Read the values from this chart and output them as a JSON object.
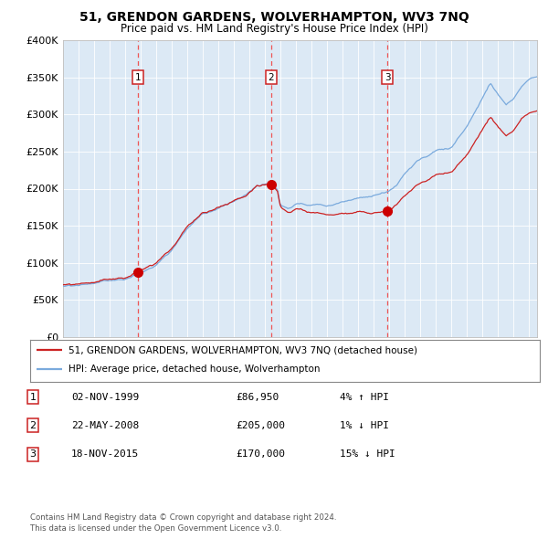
{
  "title": "51, GRENDON GARDENS, WOLVERHAMPTON, WV3 7NQ",
  "subtitle": "Price paid vs. HM Land Registry's House Price Index (HPI)",
  "background_color": "#dce9f5",
  "hpi_color": "#7aaadd",
  "price_color": "#cc2222",
  "sale_marker_color": "#cc0000",
  "dashed_line_color": "#ee5555",
  "ylim": [
    0,
    400000
  ],
  "yticks": [
    0,
    50000,
    100000,
    150000,
    200000,
    250000,
    300000,
    350000,
    400000
  ],
  "ytick_labels": [
    "£0",
    "£50K",
    "£100K",
    "£150K",
    "£200K",
    "£250K",
    "£300K",
    "£350K",
    "£400K"
  ],
  "xstart": 1995.0,
  "xend": 2025.5,
  "sales": [
    {
      "year": 1999.84,
      "price": 86950,
      "label": "1"
    },
    {
      "year": 2008.39,
      "price": 205000,
      "label": "2"
    },
    {
      "year": 2015.88,
      "price": 170000,
      "label": "3"
    }
  ],
  "legend_entries": [
    {
      "label": "51, GRENDON GARDENS, WOLVERHAMPTON, WV3 7NQ (detached house)",
      "color": "#cc2222"
    },
    {
      "label": "HPI: Average price, detached house, Wolverhampton",
      "color": "#7aaadd"
    }
  ],
  "table_rows": [
    {
      "num": "1",
      "date": "02-NOV-1999",
      "price": "£86,950",
      "hpi": "4% ↑ HPI"
    },
    {
      "num": "2",
      "date": "22-MAY-2008",
      "price": "£205,000",
      "hpi": "1% ↓ HPI"
    },
    {
      "num": "3",
      "date": "18-NOV-2015",
      "price": "£170,000",
      "hpi": "15% ↓ HPI"
    }
  ],
  "footer": "Contains HM Land Registry data © Crown copyright and database right 2024.\nThis data is licensed under the Open Government Licence v3.0."
}
